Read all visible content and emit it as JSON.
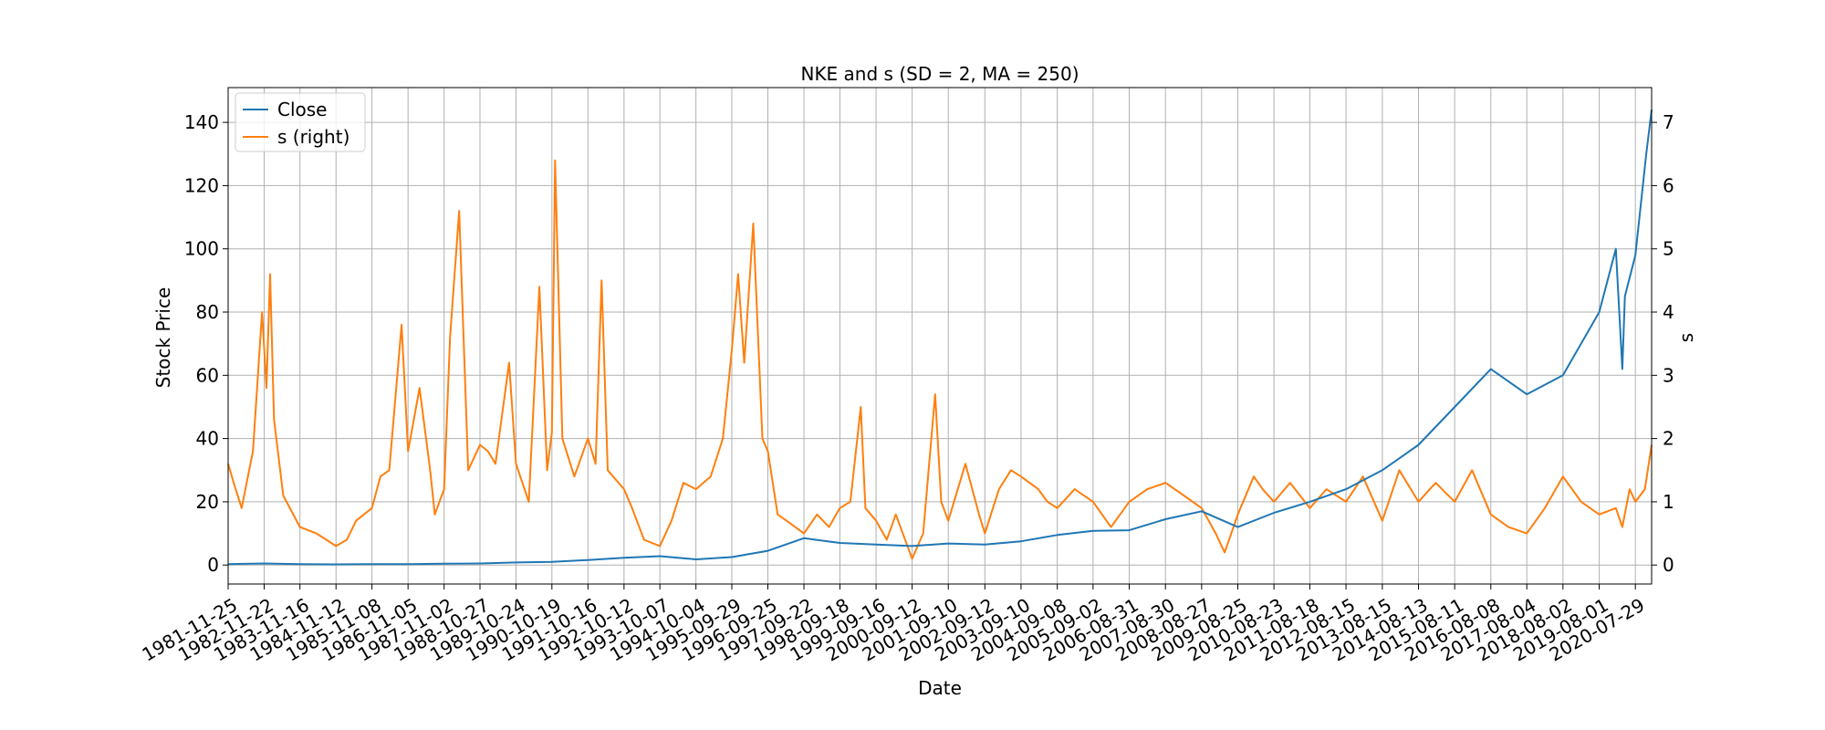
{
  "chart_data": {
    "type": "line",
    "title": "NKE and s (SD = 2, MA = 250)",
    "xlabel": "Date",
    "ylabel": "Stock Price",
    "y2label": "s",
    "x_tick_labels": [
      "1981-11-25",
      "1982-11-22",
      "1983-11-16",
      "1984-11-12",
      "1985-11-08",
      "1986-11-05",
      "1987-11-02",
      "1988-10-27",
      "1989-10-24",
      "1990-10-19",
      "1991-10-16",
      "1992-10-12",
      "1993-10-07",
      "1994-10-04",
      "1995-09-29",
      "1996-09-25",
      "1997-09-22",
      "1998-09-18",
      "1999-09-16",
      "2000-09-12",
      "2001-09-10",
      "2002-09-12",
      "2003-09-10",
      "2004-09-08",
      "2005-09-02",
      "2006-08-31",
      "2007-08-30",
      "2008-08-27",
      "2009-08-25",
      "2010-08-23",
      "2011-08-18",
      "2012-08-15",
      "2013-08-15",
      "2014-08-13",
      "2015-08-11",
      "2016-08-08",
      "2017-08-04",
      "2018-08-02",
      "2019-08-01",
      "2020-07-29"
    ],
    "x_range": [
      "1981-11-25",
      "2021-01-08"
    ],
    "y_ticks": [
      0,
      20,
      40,
      60,
      80,
      100,
      120,
      140
    ],
    "y2_ticks": [
      0,
      1,
      2,
      3,
      4,
      5,
      6,
      7
    ],
    "ylim": [
      -6,
      151
    ],
    "y2lim": [
      -0.3,
      7.55
    ],
    "grid": true,
    "legend_position": "top-left",
    "series": [
      {
        "name": "Close",
        "axis": "left",
        "color": "#1f77b4",
        "x": [
          "1981-11-25",
          "1982-11-22",
          "1983-11-16",
          "1984-11-12",
          "1985-11-08",
          "1986-11-05",
          "1987-11-02",
          "1988-10-27",
          "1989-10-24",
          "1990-10-19",
          "1991-10-16",
          "1992-10-12",
          "1993-10-07",
          "1994-10-04",
          "1995-09-29",
          "1996-09-25",
          "1997-09-22",
          "1998-09-18",
          "1999-09-16",
          "2000-09-12",
          "2001-09-10",
          "2002-09-12",
          "2003-09-10",
          "2004-09-08",
          "2005-09-02",
          "2006-08-31",
          "2007-08-30",
          "2008-08-27",
          "2009-08-25",
          "2010-08-23",
          "2011-08-18",
          "2012-08-15",
          "2013-08-15",
          "2014-08-13",
          "2015-08-11",
          "2016-08-08",
          "2017-08-04",
          "2018-08-02",
          "2019-08-01",
          "2020-01-15",
          "2020-03-20",
          "2020-04-15",
          "2020-07-29",
          "2020-11-15",
          "2021-01-08"
        ],
        "values": [
          0.3,
          0.5,
          0.3,
          0.2,
          0.3,
          0.3,
          0.4,
          0.5,
          0.8,
          1.0,
          1.6,
          2.3,
          2.8,
          1.8,
          2.5,
          4.5,
          8.5,
          7.0,
          6.5,
          6.0,
          6.8,
          6.5,
          7.5,
          9.5,
          10.8,
          11.0,
          14.5,
          17.0,
          12.0,
          16.5,
          20.0,
          24.0,
          30.0,
          38.0,
          50.0,
          62.0,
          54.0,
          60.0,
          80.0,
          100.0,
          62.0,
          85.0,
          98.0,
          130.0,
          144.0
        ]
      },
      {
        "name": "s (right)",
        "axis": "right",
        "color": "#ff7f0e",
        "x": [
          "1981-11-25",
          "1982-01-20",
          "1982-04-10",
          "1982-08-01",
          "1982-11-01",
          "1982-12-15",
          "1983-01-20",
          "1983-03-01",
          "1983-06-01",
          "1983-11-16",
          "1984-05-01",
          "1984-11-12",
          "1985-03-01",
          "1985-06-01",
          "1985-11-08",
          "1986-02-01",
          "1986-05-01",
          "1986-09-01",
          "1986-11-05",
          "1987-03-01",
          "1987-06-15",
          "1987-08-01",
          "1987-11-02",
          "1988-01-01",
          "1988-04-01",
          "1988-07-01",
          "1988-10-27",
          "1989-01-15",
          "1989-04-01",
          "1989-08-15",
          "1989-10-24",
          "1990-03-01",
          "1990-06-15",
          "1990-09-01",
          "1990-10-19",
          "1990-11-20",
          "1991-02-01",
          "1991-06-01",
          "1991-10-16",
          "1992-01-01",
          "1992-03-01",
          "1992-05-01",
          "1992-10-12",
          "1993-01-01",
          "1993-05-01",
          "1993-10-07",
          "1994-02-01",
          "1994-06-01",
          "1994-10-04",
          "1995-03-01",
          "1995-07-01",
          "1995-09-29",
          "1995-12-01",
          "1996-02-01",
          "1996-05-01",
          "1996-08-01",
          "1996-09-25",
          "1997-01-01",
          "1997-04-01",
          "1997-09-22",
          "1998-02-01",
          "1998-06-01",
          "1998-09-18",
          "1999-01-01",
          "1999-04-15",
          "1999-06-01",
          "1999-09-16",
          "2000-01-01",
          "2000-04-01",
          "2000-09-12",
          "2001-01-01",
          "2001-05-01",
          "2001-07-01",
          "2001-09-10",
          "2002-03-01",
          "2002-07-15",
          "2002-09-12",
          "2003-02-01",
          "2003-06-01",
          "2003-09-10",
          "2004-03-01",
          "2004-06-01",
          "2004-09-08",
          "2005-03-01",
          "2005-09-02",
          "2006-03-01",
          "2006-08-31",
          "2007-03-01",
          "2007-08-30",
          "2008-03-01",
          "2008-08-27",
          "2009-01-15",
          "2009-04-15",
          "2009-08-25",
          "2010-02-01",
          "2010-05-01",
          "2010-08-23",
          "2011-02-01",
          "2011-08-18",
          "2012-02-01",
          "2012-08-15",
          "2013-02-01",
          "2013-08-15",
          "2014-02-01",
          "2014-08-13",
          "2015-02-01",
          "2015-08-11",
          "2016-02-01",
          "2016-08-08",
          "2017-02-01",
          "2017-08-04",
          "2018-02-01",
          "2018-08-02",
          "2019-02-01",
          "2019-08-01",
          "2020-01-15",
          "2020-03-20",
          "2020-06-01",
          "2020-07-29",
          "2020-11-01",
          "2021-01-08"
        ],
        "values": [
          1.6,
          1.3,
          0.9,
          1.8,
          4.0,
          2.8,
          4.6,
          2.3,
          1.1,
          0.6,
          0.5,
          0.3,
          0.4,
          0.7,
          0.9,
          1.4,
          1.5,
          3.8,
          1.8,
          2.8,
          1.5,
          0.8,
          1.2,
          3.6,
          5.6,
          1.5,
          1.9,
          1.8,
          1.6,
          3.2,
          1.6,
          1.0,
          4.4,
          1.5,
          2.1,
          6.4,
          2.0,
          1.4,
          2.0,
          1.6,
          4.5,
          1.5,
          1.2,
          0.9,
          0.4,
          0.3,
          0.7,
          1.3,
          1.2,
          1.4,
          2.0,
          3.4,
          4.6,
          3.2,
          5.4,
          2.0,
          1.8,
          0.8,
          0.7,
          0.5,
          0.8,
          0.6,
          0.9,
          1.0,
          2.5,
          0.9,
          0.7,
          0.4,
          0.8,
          0.1,
          0.5,
          2.7,
          1.0,
          0.7,
          1.6,
          0.8,
          0.5,
          1.2,
          1.5,
          1.4,
          1.2,
          1.0,
          0.9,
          1.2,
          1.0,
          0.6,
          1.0,
          1.2,
          1.3,
          1.1,
          0.9,
          0.5,
          0.2,
          0.8,
          1.4,
          1.2,
          1.0,
          1.3,
          0.9,
          1.2,
          1.0,
          1.4,
          0.7,
          1.5,
          1.0,
          1.3,
          1.0,
          1.5,
          0.8,
          0.6,
          0.5,
          0.9,
          1.4,
          1.0,
          0.8,
          0.9,
          0.6,
          1.2,
          1.0,
          1.2,
          1.9
        ]
      }
    ]
  }
}
